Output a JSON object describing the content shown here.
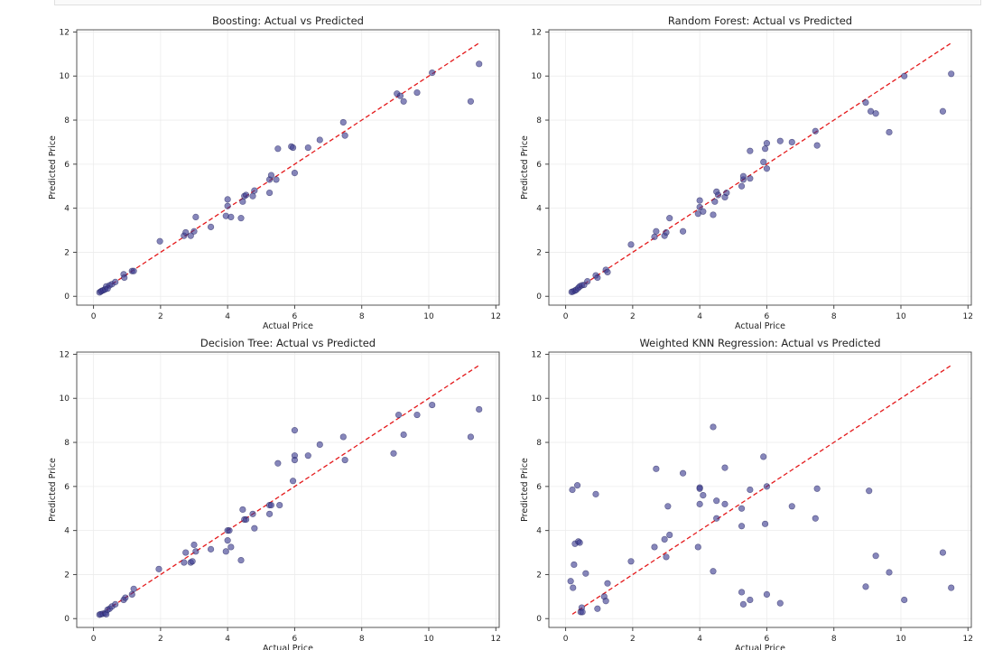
{
  "chart_data": [
    {
      "type": "scatter",
      "title": "Boosting: Actual vs Predicted",
      "xlabel": "Actual Price",
      "ylabel": "Predicted Price",
      "xlim": [
        -0.5,
        12.1
      ],
      "ylim": [
        -0.4,
        12.1
      ],
      "xticks": [
        0,
        2,
        4,
        6,
        8,
        10,
        12
      ],
      "yticks": [
        0,
        2,
        4,
        6,
        8,
        10,
        12
      ],
      "reference_line": {
        "from": [
          0.2,
          0.2
        ],
        "to": [
          11.5,
          11.5
        ],
        "style": "dashed",
        "color": "#e41a1c"
      },
      "points": [
        [
          0.18,
          0.18
        ],
        [
          0.22,
          0.22
        ],
        [
          0.25,
          0.25
        ],
        [
          0.3,
          0.28
        ],
        [
          0.35,
          0.32
        ],
        [
          0.38,
          0.45
        ],
        [
          0.42,
          0.35
        ],
        [
          0.48,
          0.5
        ],
        [
          0.55,
          0.55
        ],
        [
          0.65,
          0.65
        ],
        [
          0.9,
          1.0
        ],
        [
          0.92,
          0.85
        ],
        [
          1.15,
          1.15
        ],
        [
          1.2,
          1.15
        ],
        [
          1.98,
          2.5
        ],
        [
          2.7,
          2.75
        ],
        [
          2.75,
          2.9
        ],
        [
          2.9,
          2.75
        ],
        [
          3.0,
          2.95
        ],
        [
          3.05,
          3.6
        ],
        [
          3.5,
          3.15
        ],
        [
          3.95,
          3.65
        ],
        [
          4.0,
          4.1
        ],
        [
          4.0,
          4.4
        ],
        [
          4.1,
          3.6
        ],
        [
          4.4,
          3.55
        ],
        [
          4.45,
          4.3
        ],
        [
          4.5,
          4.55
        ],
        [
          4.55,
          4.6
        ],
        [
          4.75,
          4.55
        ],
        [
          4.8,
          4.8
        ],
        [
          5.25,
          4.7
        ],
        [
          5.25,
          5.3
        ],
        [
          5.3,
          5.5
        ],
        [
          5.45,
          5.3
        ],
        [
          5.5,
          6.7
        ],
        [
          5.9,
          6.8
        ],
        [
          5.95,
          6.75
        ],
        [
          6.0,
          5.6
        ],
        [
          6.4,
          6.75
        ],
        [
          6.75,
          7.1
        ],
        [
          7.45,
          7.9
        ],
        [
          7.5,
          7.3
        ],
        [
          9.05,
          9.2
        ],
        [
          9.15,
          9.1
        ],
        [
          9.25,
          8.85
        ],
        [
          9.65,
          9.25
        ],
        [
          10.1,
          10.15
        ],
        [
          11.25,
          8.85
        ],
        [
          11.5,
          10.55
        ]
      ]
    },
    {
      "type": "scatter",
      "title": "Random Forest: Actual vs Predicted",
      "xlabel": "Actual Price",
      "ylabel": "Predicted Price",
      "xlim": [
        -0.5,
        12.1
      ],
      "ylim": [
        -0.4,
        12.1
      ],
      "xticks": [
        0,
        2,
        4,
        6,
        8,
        10,
        12
      ],
      "yticks": [
        0,
        2,
        4,
        6,
        8,
        10,
        12
      ],
      "reference_line": {
        "from": [
          0.2,
          0.2
        ],
        "to": [
          11.5,
          11.5
        ],
        "style": "dashed",
        "color": "#e41a1c"
      },
      "points": [
        [
          0.18,
          0.2
        ],
        [
          0.22,
          0.22
        ],
        [
          0.28,
          0.26
        ],
        [
          0.32,
          0.3
        ],
        [
          0.38,
          0.38
        ],
        [
          0.42,
          0.45
        ],
        [
          0.48,
          0.5
        ],
        [
          0.55,
          0.52
        ],
        [
          0.65,
          0.68
        ],
        [
          0.9,
          0.95
        ],
        [
          0.95,
          0.85
        ],
        [
          1.2,
          1.2
        ],
        [
          1.25,
          1.1
        ],
        [
          1.95,
          2.35
        ],
        [
          2.65,
          2.7
        ],
        [
          2.7,
          2.95
        ],
        [
          2.95,
          2.75
        ],
        [
          3.0,
          2.9
        ],
        [
          3.1,
          3.55
        ],
        [
          3.5,
          2.95
        ],
        [
          3.95,
          3.75
        ],
        [
          4.0,
          4.05
        ],
        [
          4.0,
          4.35
        ],
        [
          4.1,
          3.85
        ],
        [
          4.4,
          3.7
        ],
        [
          4.45,
          4.3
        ],
        [
          4.5,
          4.75
        ],
        [
          4.55,
          4.6
        ],
        [
          4.75,
          4.5
        ],
        [
          4.8,
          4.7
        ],
        [
          5.25,
          5.0
        ],
        [
          5.3,
          5.3
        ],
        [
          5.3,
          5.45
        ],
        [
          5.5,
          5.35
        ],
        [
          5.5,
          6.6
        ],
        [
          5.9,
          6.1
        ],
        [
          5.95,
          6.7
        ],
        [
          6.0,
          5.8
        ],
        [
          6.0,
          6.95
        ],
        [
          6.4,
          7.05
        ],
        [
          6.75,
          7.0
        ],
        [
          7.45,
          7.5
        ],
        [
          7.5,
          6.85
        ],
        [
          8.95,
          8.8
        ],
        [
          9.1,
          8.4
        ],
        [
          9.25,
          8.3
        ],
        [
          9.65,
          7.45
        ],
        [
          10.1,
          10.0
        ],
        [
          11.25,
          8.4
        ],
        [
          11.5,
          10.1
        ]
      ]
    },
    {
      "type": "scatter",
      "title": "Decision Tree: Actual vs Predicted",
      "xlabel": "Actual Price",
      "ylabel": "Predicted Price",
      "xlim": [
        -0.5,
        12.1
      ],
      "ylim": [
        -0.4,
        12.1
      ],
      "xticks": [
        0,
        2,
        4,
        6,
        8,
        10,
        12
      ],
      "yticks": [
        0,
        2,
        4,
        6,
        8,
        10,
        12
      ],
      "reference_line": {
        "from": [
          0.2,
          0.2
        ],
        "to": [
          11.5,
          11.5
        ],
        "style": "dashed",
        "color": "#e41a1c"
      },
      "points": [
        [
          0.18,
          0.18
        ],
        [
          0.22,
          0.2
        ],
        [
          0.28,
          0.22
        ],
        [
          0.35,
          0.25
        ],
        [
          0.38,
          0.2
        ],
        [
          0.42,
          0.4
        ],
        [
          0.48,
          0.45
        ],
        [
          0.55,
          0.55
        ],
        [
          0.65,
          0.65
        ],
        [
          0.9,
          0.85
        ],
        [
          0.95,
          0.95
        ],
        [
          1.15,
          1.1
        ],
        [
          1.2,
          1.35
        ],
        [
          1.95,
          2.25
        ],
        [
          2.7,
          2.55
        ],
        [
          2.75,
          3.0
        ],
        [
          2.9,
          2.55
        ],
        [
          2.95,
          2.6
        ],
        [
          3.0,
          3.35
        ],
        [
          3.05,
          3.05
        ],
        [
          3.5,
          3.15
        ],
        [
          3.95,
          3.05
        ],
        [
          4.0,
          3.55
        ],
        [
          4.0,
          4.0
        ],
        [
          4.05,
          4.0
        ],
        [
          4.1,
          3.25
        ],
        [
          4.4,
          2.65
        ],
        [
          4.45,
          4.95
        ],
        [
          4.5,
          4.5
        ],
        [
          4.55,
          4.5
        ],
        [
          4.75,
          4.75
        ],
        [
          4.8,
          4.1
        ],
        [
          5.25,
          5.15
        ],
        [
          5.25,
          4.75
        ],
        [
          5.3,
          5.15
        ],
        [
          5.5,
          7.05
        ],
        [
          5.55,
          5.15
        ],
        [
          5.95,
          6.25
        ],
        [
          6.0,
          8.55
        ],
        [
          6.0,
          7.4
        ],
        [
          6.0,
          7.2
        ],
        [
          6.4,
          7.4
        ],
        [
          6.75,
          7.9
        ],
        [
          7.45,
          8.25
        ],
        [
          7.5,
          7.2
        ],
        [
          8.95,
          7.5
        ],
        [
          9.1,
          9.25
        ],
        [
          9.25,
          8.35
        ],
        [
          9.65,
          9.25
        ],
        [
          10.1,
          9.7
        ],
        [
          11.25,
          8.25
        ],
        [
          11.5,
          9.5
        ]
      ]
    },
    {
      "type": "scatter",
      "title": "Weighted KNN Regression: Actual vs Predicted",
      "xlabel": "Actual Price",
      "ylabel": "Predicted Price",
      "xlim": [
        -0.5,
        12.1
      ],
      "ylim": [
        -0.4,
        12.1
      ],
      "xticks": [
        0,
        2,
        4,
        6,
        8,
        10,
        12
      ],
      "yticks": [
        0,
        2,
        4,
        6,
        8,
        10,
        12
      ],
      "reference_line": {
        "from": [
          0.2,
          0.2
        ],
        "to": [
          11.5,
          11.5
        ],
        "style": "dashed",
        "color": "#e41a1c"
      },
      "points": [
        [
          0.15,
          1.7
        ],
        [
          0.2,
          5.85
        ],
        [
          0.22,
          1.4
        ],
        [
          0.25,
          2.45
        ],
        [
          0.28,
          3.4
        ],
        [
          0.35,
          6.05
        ],
        [
          0.38,
          3.5
        ],
        [
          0.42,
          3.45
        ],
        [
          0.45,
          0.3
        ],
        [
          0.48,
          0.5
        ],
        [
          0.5,
          0.3
        ],
        [
          0.6,
          2.05
        ],
        [
          0.9,
          5.65
        ],
        [
          0.95,
          0.45
        ],
        [
          1.15,
          1.0
        ],
        [
          1.2,
          0.8
        ],
        [
          1.25,
          1.6
        ],
        [
          1.95,
          2.6
        ],
        [
          2.65,
          3.25
        ],
        [
          2.7,
          6.8
        ],
        [
          2.95,
          3.6
        ],
        [
          3.0,
          2.8
        ],
        [
          3.05,
          5.1
        ],
        [
          3.1,
          3.8
        ],
        [
          3.5,
          6.6
        ],
        [
          3.95,
          3.25
        ],
        [
          4.0,
          5.95
        ],
        [
          4.0,
          5.9
        ],
        [
          4.0,
          5.2
        ],
        [
          4.1,
          5.6
        ],
        [
          4.4,
          8.7
        ],
        [
          4.4,
          2.15
        ],
        [
          4.5,
          4.55
        ],
        [
          4.5,
          5.35
        ],
        [
          4.75,
          5.2
        ],
        [
          4.75,
          6.85
        ],
        [
          5.25,
          4.2
        ],
        [
          5.25,
          1.2
        ],
        [
          5.25,
          5.0
        ],
        [
          5.3,
          0.65
        ],
        [
          5.5,
          5.85
        ],
        [
          5.5,
          0.85
        ],
        [
          5.9,
          7.35
        ],
        [
          5.95,
          4.3
        ],
        [
          6.0,
          1.1
        ],
        [
          6.0,
          6.0
        ],
        [
          6.4,
          0.7
        ],
        [
          6.75,
          5.1
        ],
        [
          7.45,
          4.55
        ],
        [
          7.5,
          5.9
        ],
        [
          8.95,
          1.45
        ],
        [
          9.05,
          5.8
        ],
        [
          9.25,
          2.85
        ],
        [
          9.65,
          2.1
        ],
        [
          10.1,
          0.85
        ],
        [
          11.25,
          3.0
        ],
        [
          11.5,
          1.4
        ]
      ]
    }
  ],
  "style": {
    "point_color": "#3b3b8f",
    "point_edge": "#1f1f5c",
    "line_color": "#e41a1c",
    "grid_color": "#ececec",
    "axis_color": "#444444"
  }
}
